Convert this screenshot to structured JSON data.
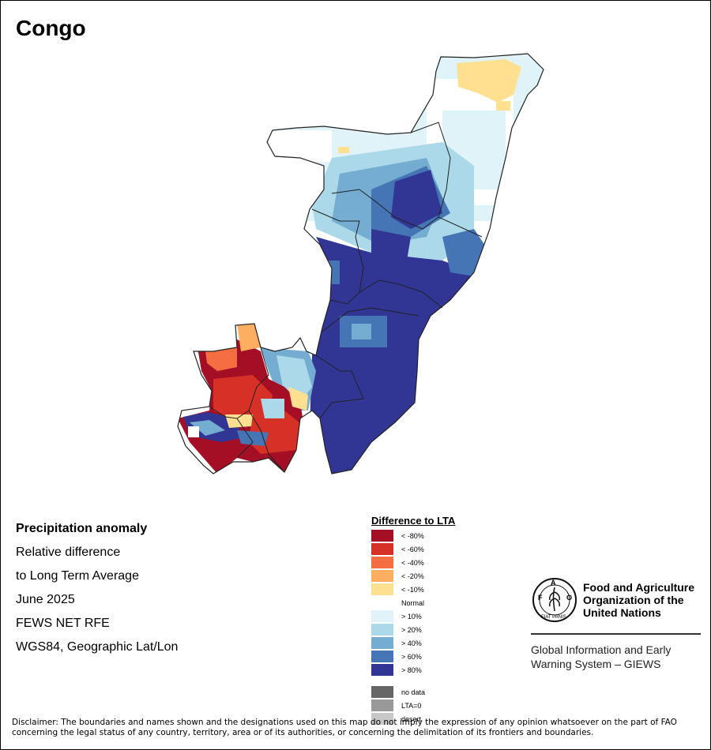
{
  "title": "Congo",
  "info": {
    "heading": "Precipitation anomaly",
    "line1": "Relative difference",
    "line2": "to Long Term Average",
    "period": "June 2025",
    "source": "FEWS NET RFE",
    "projection": "WGS84, Geographic Lat/Lon"
  },
  "legend": {
    "title": "Difference to LTA",
    "items": [
      {
        "label": "< -80%",
        "color": "#a50f26"
      },
      {
        "label": "< -60%",
        "color": "#d73027"
      },
      {
        "label": "< -40%",
        "color": "#f46d43"
      },
      {
        "label": "< -20%",
        "color": "#fdae61"
      },
      {
        "label": "< -10%",
        "color": "#fee090"
      },
      {
        "label": "Normal",
        "color": "#ffffff"
      },
      {
        "label": "> 10%",
        "color": "#e0f3f8"
      },
      {
        "label": "> 20%",
        "color": "#abd9e9"
      },
      {
        "label": "> 40%",
        "color": "#74add1"
      },
      {
        "label": "> 60%",
        "color": "#4575b4"
      },
      {
        "label": "> 80%",
        "color": "#313695"
      }
    ],
    "extra": [
      {
        "label": "no data",
        "color": "#666666"
      },
      {
        "label": "LTA=0",
        "color": "#999999"
      },
      {
        "label": "desert",
        "color": "#c8c8c8"
      }
    ]
  },
  "logo": {
    "name_line1": "Food and Agriculture",
    "name_line2": "Organization of the",
    "name_line3": "United Nations",
    "seal_text": "FAO",
    "seal_motto": "FIAT PANIS",
    "system_line1": "Global Information and Early",
    "system_line2": "Warning System – GIEWS"
  },
  "disclaimer": "Disclaimer: The boundaries and names shown and the designations used on this map do not imply the expression of any opinion whatsoever on the part of FAO concerning the legal status of any country, territory, area or of its authorities, or concerning the delimitation of its frontiers and boundaries."
}
